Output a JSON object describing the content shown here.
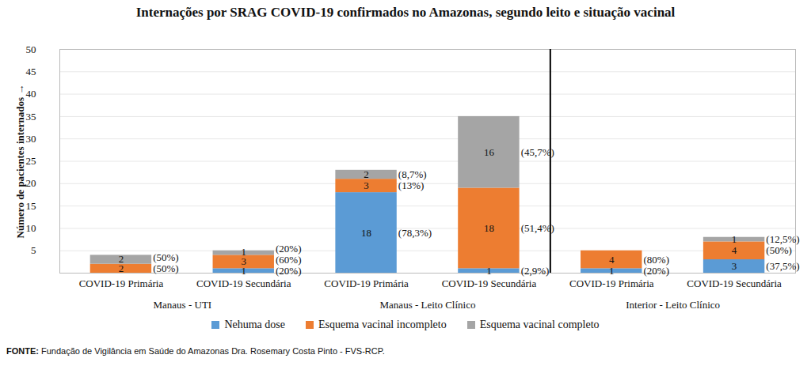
{
  "chart_data": {
    "type": "bar",
    "title": "Internações por SRAG COVID-19 confirmados no Amazonas, segundo leito e situação vacinal",
    "y_label": "Número de pacientes internados",
    "categories": [
      "COVID-19 Primária",
      "COVID-19 Secundária",
      "COVID-19 Primária",
      "COVID-19 Secundária",
      "COVID-19 Primária",
      "COVID-19 Secundária"
    ],
    "groups": [
      "Manaus - UTI",
      "Manaus - UTI",
      "Manaus - Leito Clínico",
      "Manaus - Leito Clínico",
      "Interior - Leito Clínico",
      "Interior - Leito Clínico"
    ],
    "series": [
      {
        "name": "Nehuma dose",
        "color": "#5b9bd5",
        "values": [
          0,
          1,
          18,
          1,
          1,
          3
        ],
        "percents": [
          null,
          20,
          78.3,
          2.9,
          20,
          37.5
        ],
        "percent_labels": [
          null,
          "(20%)",
          "(78,3%)",
          "(2,9%)",
          "(20%)",
          "(37,5%)"
        ]
      },
      {
        "name": "Esquema vacinal incompleto",
        "color": "#ed7d31",
        "values": [
          2,
          3,
          3,
          18,
          4,
          4
        ],
        "percents": [
          50,
          60,
          13,
          51.4,
          80,
          50
        ],
        "percent_labels": [
          "(50%)",
          "(60%)",
          "(13%)",
          "(51,4%)",
          "(80%)",
          "(50%)"
        ]
      },
      {
        "name": "Esquema vacinal completo",
        "color": "#a5a5a5",
        "values": [
          2,
          1,
          2,
          16,
          0,
          1
        ],
        "percents": [
          50,
          20,
          8.7,
          45.7,
          null,
          12.5
        ],
        "percent_labels": [
          "(50%)",
          "(20%)",
          "(8,7%)",
          "(45,7%)",
          null,
          "(12,5%)"
        ]
      }
    ],
    "stacked": true,
    "data_labels": true,
    "ylim": [
      0,
      50
    ],
    "yticks": [
      5,
      10,
      15,
      20,
      25,
      30,
      35,
      40,
      45,
      50
    ],
    "grid": true,
    "legend": "bottom",
    "source_label": "FONTE:",
    "source": "Fundação de Vigilância em Saúde do Amazonas Dra. Rosemary Costa Pinto - FVS-RCP."
  }
}
